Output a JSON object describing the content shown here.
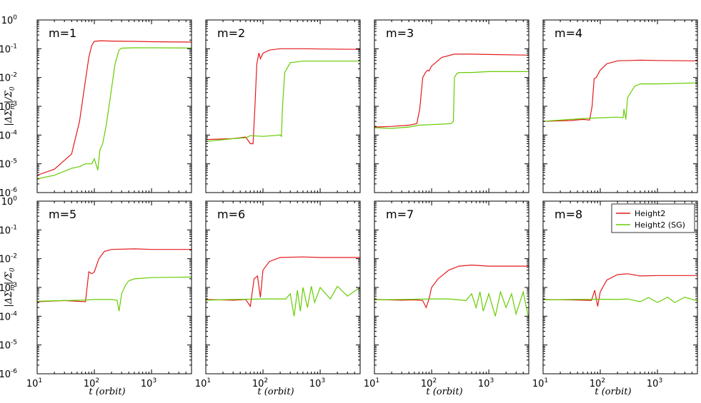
{
  "chart_data": {
    "type": "line",
    "layout": "grid-2x4",
    "xscale": "log",
    "yscale": "log",
    "xlim": [
      10,
      5000
    ],
    "ylim": [
      1e-06,
      1
    ],
    "xlabel": "t (orbit)",
    "ylabel": "|ΔΣm|/Σ0",
    "ylabel_parts": {
      "main": "|ΔΣ",
      "sub1": "m",
      "mid": "|/Σ",
      "sub2": "0"
    },
    "xtick_values": [
      10,
      100,
      1000
    ],
    "xtick_labels": [
      "10",
      "10",
      "10"
    ],
    "xtick_exps": [
      "1",
      "2",
      "3"
    ],
    "ytick_values": [
      1e-06,
      1e-05,
      0.0001,
      0.001,
      0.01,
      0.1,
      1
    ],
    "ytick_labels": [
      "10",
      "10",
      "10",
      "10",
      "10",
      "10",
      "10"
    ],
    "ytick_exps": [
      "-6",
      "-5",
      "-4",
      "-3",
      "-2",
      "-1",
      "0"
    ],
    "colors": {
      "Height2": "#e41a1c",
      "Height2 (SG)": "#66cc00"
    },
    "legend": {
      "location": "upper-right",
      "entries": [
        "Height2",
        "Height2 (SG)"
      ]
    },
    "panels": [
      {
        "label": "m=1",
        "series": [
          {
            "name": "Height2",
            "x": [
              10,
              20,
              40,
              55,
              70,
              80,
              90,
              100,
              130,
              200,
              500,
              1000,
              5000
            ],
            "y": [
              4e-06,
              6.5e-06,
              2.2e-05,
              0.0003,
              0.008,
              0.05,
              0.13,
              0.18,
              0.19,
              0.185,
              0.18,
              0.175,
              0.17
            ]
          },
          {
            "name": "Height2 (SG)",
            "x": [
              10,
              20,
              40,
              55,
              70,
              90,
              100,
              115,
              125,
              140,
              160,
              190,
              230,
              270,
              300,
              500,
              1000,
              5000
            ],
            "y": [
              3e-06,
              4e-06,
              7e-06,
              8e-06,
              1e-05,
              1e-05,
              1.5e-05,
              6e-06,
              3e-05,
              5e-05,
              0.0002,
              0.002,
              0.03,
              0.09,
              0.105,
              0.108,
              0.108,
              0.106
            ]
          }
        ]
      },
      {
        "label": "m=2",
        "series": [
          {
            "name": "Height2",
            "x": [
              10,
              30,
              50,
              60,
              67,
              72,
              78,
              85,
              90,
              100,
              130,
              200,
              500,
              1000,
              5000
            ],
            "y": [
              7e-05,
              7.5e-05,
              8.5e-05,
              5e-05,
              5e-05,
              0.0008,
              0.03,
              0.072,
              0.045,
              0.07,
              0.09,
              0.1,
              0.1,
              0.098,
              0.095
            ]
          },
          {
            "name": "Height2 (SG)",
            "x": [
              10,
              30,
              50,
              60,
              100,
              150,
              200,
              210,
              220,
              240,
              300,
              500,
              1000,
              5000
            ],
            "y": [
              6e-05,
              7.5e-05,
              8e-05,
              9.5e-05,
              9e-05,
              9.5e-05,
              0.0001,
              9e-05,
              0.001,
              0.015,
              0.033,
              0.037,
              0.037,
              0.037
            ]
          }
        ]
      },
      {
        "label": "m=3",
        "series": [
          {
            "name": "Height2",
            "x": [
              10,
              20,
              40,
              55,
              62,
              70,
              78,
              85,
              90,
              100,
              150,
              250,
              500,
              1000,
              5000
            ],
            "y": [
              0.00019,
              0.0002,
              0.00022,
              0.00025,
              0.0008,
              0.01,
              0.015,
              0.018,
              0.017,
              0.025,
              0.05,
              0.065,
              0.065,
              0.063,
              0.06
            ]
          },
          {
            "name": "Height2 (SG)",
            "x": [
              10,
              20,
              40,
              60,
              100,
              150,
              220,
              240,
              250,
              270,
              300,
              500,
              1000,
              5000
            ],
            "y": [
              0.00018,
              0.00017,
              0.00019,
              0.00022,
              0.00023,
              0.00024,
              0.00025,
              0.0003,
              0.01,
              0.013,
              0.015,
              0.015,
              0.016,
              0.016
            ]
          }
        ]
      },
      {
        "label": "m=4",
        "series": [
          {
            "name": "Height2",
            "x": [
              10,
              30,
              50,
              65,
              72,
              78,
              85,
              100,
              130,
              200,
              500,
              1000,
              5000
            ],
            "y": [
              0.0003,
              0.00032,
              0.00035,
              0.00033,
              0.001,
              0.009,
              0.01,
              0.018,
              0.03,
              0.038,
              0.04,
              0.039,
              0.038
            ]
          },
          {
            "name": "Height2 (SG)",
            "x": [
              10,
              30,
              60,
              100,
              200,
              250,
              260,
              280,
              300,
              400,
              500,
              1000,
              5000
            ],
            "y": [
              0.0003,
              0.00035,
              0.00038,
              0.0004,
              0.00042,
              0.0004,
              0.0008,
              0.00035,
              0.002,
              0.005,
              0.006,
              0.006,
              0.0065
            ]
          }
        ]
      },
      {
        "label": "m=5",
        "series": [
          {
            "name": "Height2",
            "x": [
              10,
              30,
              50,
              70,
              80,
              90,
              100,
              120,
              150,
              200,
              500,
              1000,
              5000
            ],
            "y": [
              0.00032,
              0.00035,
              0.00033,
              0.00032,
              0.0035,
              0.003,
              0.0035,
              0.01,
              0.018,
              0.021,
              0.022,
              0.021,
              0.021
            ]
          },
          {
            "name": "Height2 (SG)",
            "x": [
              10,
              30,
              60,
              100,
              200,
              250,
              270,
              300,
              350,
              400,
              500,
              1000,
              5000
            ],
            "y": [
              0.00033,
              0.00035,
              0.00036,
              0.00038,
              0.00038,
              0.00036,
              0.00015,
              0.0006,
              0.0012,
              0.0017,
              0.002,
              0.0022,
              0.0023
            ]
          }
        ]
      },
      {
        "label": "m=6",
        "series": [
          {
            "name": "Height2",
            "x": [
              10,
              30,
              50,
              60,
              70,
              80,
              90,
              100,
              130,
              200,
              500,
              1000,
              5000
            ],
            "y": [
              0.00038,
              0.00036,
              0.00038,
              0.00022,
              0.002,
              0.0025,
              0.00045,
              0.004,
              0.008,
              0.011,
              0.0115,
              0.011,
              0.011
            ]
          },
          {
            "name": "Height2 (SG)",
            "x": [
              10,
              30,
              100,
              250,
              300,
              350,
              400,
              450,
              500,
              600,
              700,
              800,
              1000,
              1500,
              2000,
              3000,
              5000
            ],
            "y": [
              0.00036,
              0.00038,
              0.0004,
              0.0004,
              0.0006,
              0.0001,
              0.0008,
              0.00015,
              0.001,
              0.0002,
              0.0011,
              0.0003,
              0.001,
              0.0004,
              0.0011,
              0.0005,
              0.001
            ]
          }
        ]
      },
      {
        "label": "m=7",
        "series": [
          {
            "name": "Height2",
            "x": [
              10,
              30,
              50,
              70,
              80,
              90,
              100,
              130,
              200,
              300,
              500,
              1000,
              5000
            ],
            "y": [
              0.00038,
              0.00036,
              0.00037,
              0.00035,
              0.0002,
              0.0004,
              0.001,
              0.002,
              0.004,
              0.0055,
              0.006,
              0.0055,
              0.0055
            ]
          },
          {
            "name": "Height2 (SG)",
            "x": [
              10,
              30,
              100,
              200,
              400,
              500,
              600,
              700,
              800,
              1000,
              1300,
              1600,
              2000,
              2500,
              3000,
              4000,
              5000
            ],
            "y": [
              0.00037,
              0.00038,
              0.0004,
              0.0004,
              0.00035,
              0.0006,
              0.0002,
              0.0007,
              0.00015,
              0.0006,
              0.0001,
              0.0007,
              0.0002,
              0.0006,
              0.00012,
              0.0007,
              8e-05
            ]
          }
        ]
      },
      {
        "label": "m=8",
        "series": [
          {
            "name": "Height2",
            "x": [
              10,
              30,
              50,
              70,
              80,
              90,
              100,
              130,
              200,
              300,
              500,
              1000,
              5000
            ],
            "y": [
              0.00038,
              0.00037,
              0.00036,
              0.00035,
              0.0008,
              0.00022,
              0.0007,
              0.0018,
              0.0028,
              0.003,
              0.0025,
              0.0026,
              0.0026
            ]
          },
          {
            "name": "Height2 (SG)",
            "x": [
              10,
              30,
              100,
              200,
              300,
              500,
              700,
              1000,
              1500,
              2000,
              3000,
              5000
            ],
            "y": [
              0.00037,
              0.00038,
              0.00039,
              0.00038,
              0.0004,
              0.00032,
              0.00045,
              0.0003,
              0.00046,
              0.0003,
              0.00046,
              0.00034
            ]
          }
        ]
      }
    ]
  }
}
